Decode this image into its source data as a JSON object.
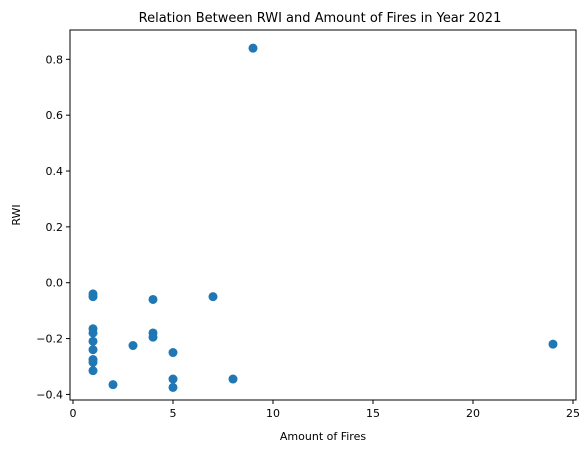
{
  "chart_data": {
    "type": "scatter",
    "title": "Relation Between RWI and Amount of Fires in Year 2021",
    "xlabel": "Amount of Fires",
    "ylabel": "RWI",
    "xlim": [
      -0.15,
      25.15
    ],
    "ylim": [
      -0.42,
      0.905
    ],
    "xticks": [
      0,
      5,
      10,
      15,
      20,
      25
    ],
    "xtick_labels": [
      "0",
      "5",
      "10",
      "15",
      "20",
      "25"
    ],
    "yticks": [
      -0.4,
      -0.2,
      0.0,
      0.2,
      0.4,
      0.6,
      0.8
    ],
    "ytick_labels": [
      "−0.4",
      "−0.2",
      "0.0",
      "0.2",
      "0.4",
      "0.6",
      "0.8"
    ],
    "grid": false,
    "marker_color": "#1f77b4",
    "points": [
      {
        "x": 1,
        "y": -0.04
      },
      {
        "x": 1,
        "y": -0.05
      },
      {
        "x": 1,
        "y": -0.165
      },
      {
        "x": 1,
        "y": -0.18
      },
      {
        "x": 1,
        "y": -0.21
      },
      {
        "x": 1,
        "y": -0.24
      },
      {
        "x": 1,
        "y": -0.275
      },
      {
        "x": 1,
        "y": -0.285
      },
      {
        "x": 1,
        "y": -0.315
      },
      {
        "x": 2,
        "y": -0.365
      },
      {
        "x": 3,
        "y": -0.225
      },
      {
        "x": 4,
        "y": -0.06
      },
      {
        "x": 4,
        "y": -0.18
      },
      {
        "x": 4,
        "y": -0.195
      },
      {
        "x": 5,
        "y": -0.25
      },
      {
        "x": 5,
        "y": -0.345
      },
      {
        "x": 5,
        "y": -0.375
      },
      {
        "x": 7,
        "y": -0.05
      },
      {
        "x": 8,
        "y": -0.345
      },
      {
        "x": 9,
        "y": 0.84
      },
      {
        "x": 24,
        "y": -0.22
      }
    ]
  }
}
